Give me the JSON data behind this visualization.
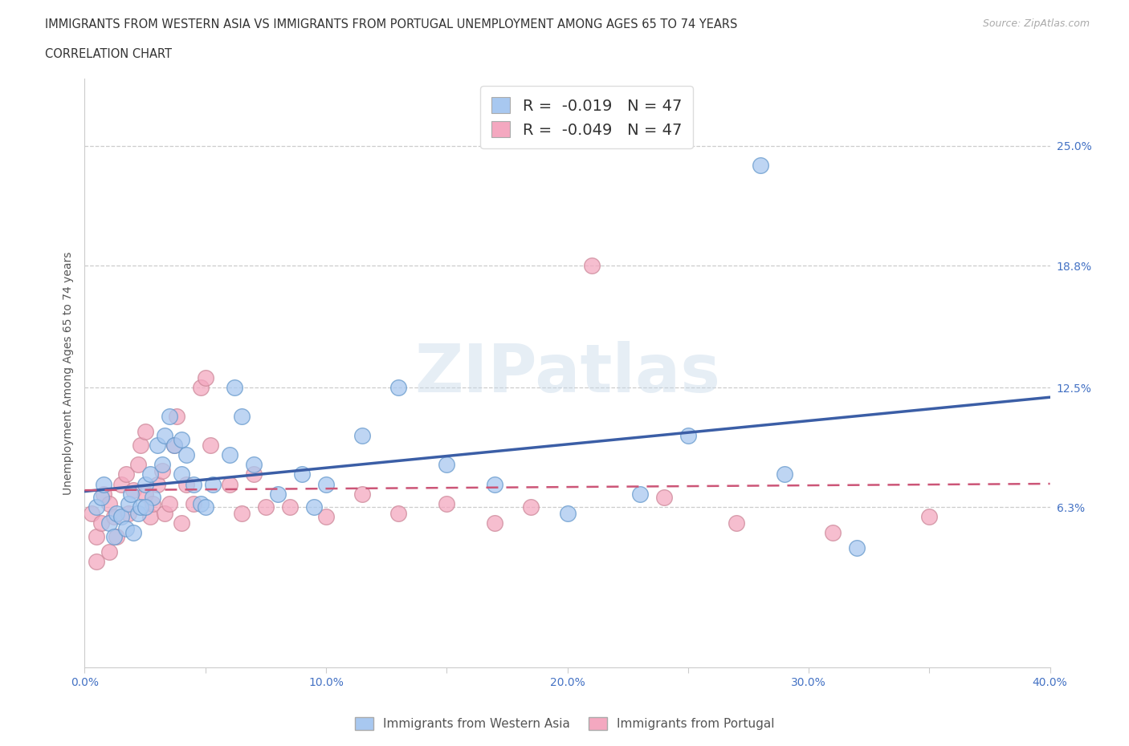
{
  "title_line1": "IMMIGRANTS FROM WESTERN ASIA VS IMMIGRANTS FROM PORTUGAL UNEMPLOYMENT AMONG AGES 65 TO 74 YEARS",
  "title_line2": "CORRELATION CHART",
  "source_text": "Source: ZipAtlas.com",
  "ylabel": "Unemployment Among Ages 65 to 74 years",
  "xlim": [
    0.0,
    0.4
  ],
  "ylim": [
    -0.02,
    0.285
  ],
  "xtick_vals": [
    0.0,
    0.05,
    0.1,
    0.15,
    0.2,
    0.25,
    0.3,
    0.35,
    0.4
  ],
  "xtick_labels": [
    "0.0%",
    "",
    "10.0%",
    "",
    "20.0%",
    "",
    "30.0%",
    "",
    "40.0%"
  ],
  "ytick_labels": [
    "25.0%",
    "18.8%",
    "12.5%",
    "6.3%"
  ],
  "ytick_vals": [
    0.25,
    0.188,
    0.125,
    0.063
  ],
  "watermark": "ZIPatlas",
  "color_western_asia": "#a8c8f0",
  "color_western_asia_edge": "#6699cc",
  "color_portugal": "#f4a8c0",
  "color_portugal_edge": "#cc8899",
  "color_line_western_asia": "#3b5ea6",
  "color_line_portugal": "#cc5577",
  "title_color": "#333333",
  "axis_label_color": "#555555",
  "tick_color": "#4472c4",
  "western_asia_x": [
    0.005,
    0.007,
    0.008,
    0.01,
    0.012,
    0.013,
    0.015,
    0.017,
    0.018,
    0.019,
    0.02,
    0.022,
    0.023,
    0.025,
    0.027,
    0.028,
    0.03,
    0.032,
    0.033,
    0.035,
    0.037,
    0.04,
    0.042,
    0.045,
    0.048,
    0.05,
    0.053,
    0.06,
    0.062,
    0.065,
    0.07,
    0.08,
    0.09,
    0.095,
    0.1,
    0.115,
    0.13,
    0.15,
    0.17,
    0.2,
    0.23,
    0.25,
    0.28,
    0.29,
    0.32,
    0.025,
    0.04
  ],
  "western_asia_y": [
    0.063,
    0.068,
    0.075,
    0.055,
    0.048,
    0.06,
    0.058,
    0.052,
    0.065,
    0.07,
    0.05,
    0.06,
    0.063,
    0.075,
    0.08,
    0.068,
    0.095,
    0.085,
    0.1,
    0.11,
    0.095,
    0.08,
    0.09,
    0.075,
    0.065,
    0.063,
    0.075,
    0.09,
    0.125,
    0.11,
    0.085,
    0.07,
    0.08,
    0.063,
    0.075,
    0.1,
    0.125,
    0.085,
    0.075,
    0.06,
    0.07,
    0.1,
    0.24,
    0.08,
    0.042,
    0.063,
    0.098
  ],
  "portugal_x": [
    0.003,
    0.005,
    0.007,
    0.008,
    0.01,
    0.012,
    0.013,
    0.015,
    0.017,
    0.018,
    0.02,
    0.022,
    0.023,
    0.025,
    0.027,
    0.028,
    0.03,
    0.032,
    0.033,
    0.035,
    0.037,
    0.038,
    0.04,
    0.042,
    0.045,
    0.048,
    0.05,
    0.052,
    0.06,
    0.065,
    0.07,
    0.075,
    0.085,
    0.1,
    0.115,
    0.13,
    0.15,
    0.17,
    0.185,
    0.21,
    0.24,
    0.27,
    0.31,
    0.35,
    0.005,
    0.01,
    0.025
  ],
  "portugal_y": [
    0.06,
    0.048,
    0.055,
    0.07,
    0.065,
    0.058,
    0.048,
    0.075,
    0.08,
    0.06,
    0.072,
    0.085,
    0.095,
    0.07,
    0.058,
    0.065,
    0.075,
    0.082,
    0.06,
    0.065,
    0.095,
    0.11,
    0.055,
    0.075,
    0.065,
    0.125,
    0.13,
    0.095,
    0.075,
    0.06,
    0.08,
    0.063,
    0.063,
    0.058,
    0.07,
    0.06,
    0.065,
    0.055,
    0.063,
    0.188,
    0.068,
    0.055,
    0.05,
    0.058,
    0.035,
    0.04,
    0.102
  ]
}
